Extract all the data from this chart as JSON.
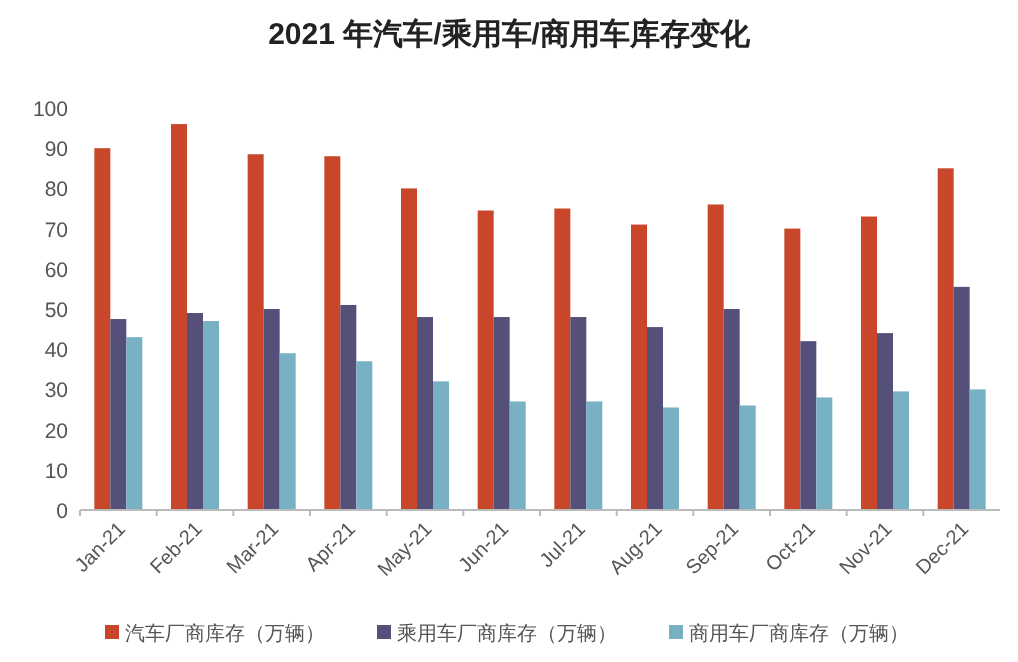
{
  "chart_data": {
    "type": "bar",
    "title": "2021 年汽车/乘用车/商用车库存变化",
    "categories": [
      "Jan-21",
      "Feb-21",
      "Mar-21",
      "Apr-21",
      "May-21",
      "Jun-21",
      "Jul-21",
      "Aug-21",
      "Sep-21",
      "Oct-21",
      "Nov-21",
      "Dec-21"
    ],
    "series": [
      {
        "name": "汽车厂商库存（万辆）",
        "color": "#c8462a",
        "values": [
          90,
          96,
          88.5,
          88,
          80,
          74.5,
          75,
          71,
          76,
          70,
          73,
          85
        ]
      },
      {
        "name": "乘用车厂商库存（万辆）",
        "color": "#54507a",
        "values": [
          47.5,
          49,
          50,
          51,
          48,
          48,
          48,
          45.5,
          50,
          42,
          44,
          55.5
        ]
      },
      {
        "name": "商用车厂商库存（万辆）",
        "color": "#79b1c4",
        "values": [
          43,
          47,
          39,
          37,
          32,
          27,
          27,
          25.5,
          26,
          28,
          29.5,
          30
        ]
      }
    ],
    "ylim": [
      0,
      100
    ],
    "yticks": [
      0,
      10,
      20,
      30,
      40,
      50,
      60,
      70,
      80,
      90,
      100
    ],
    "grid": false,
    "legend": "bottom"
  }
}
